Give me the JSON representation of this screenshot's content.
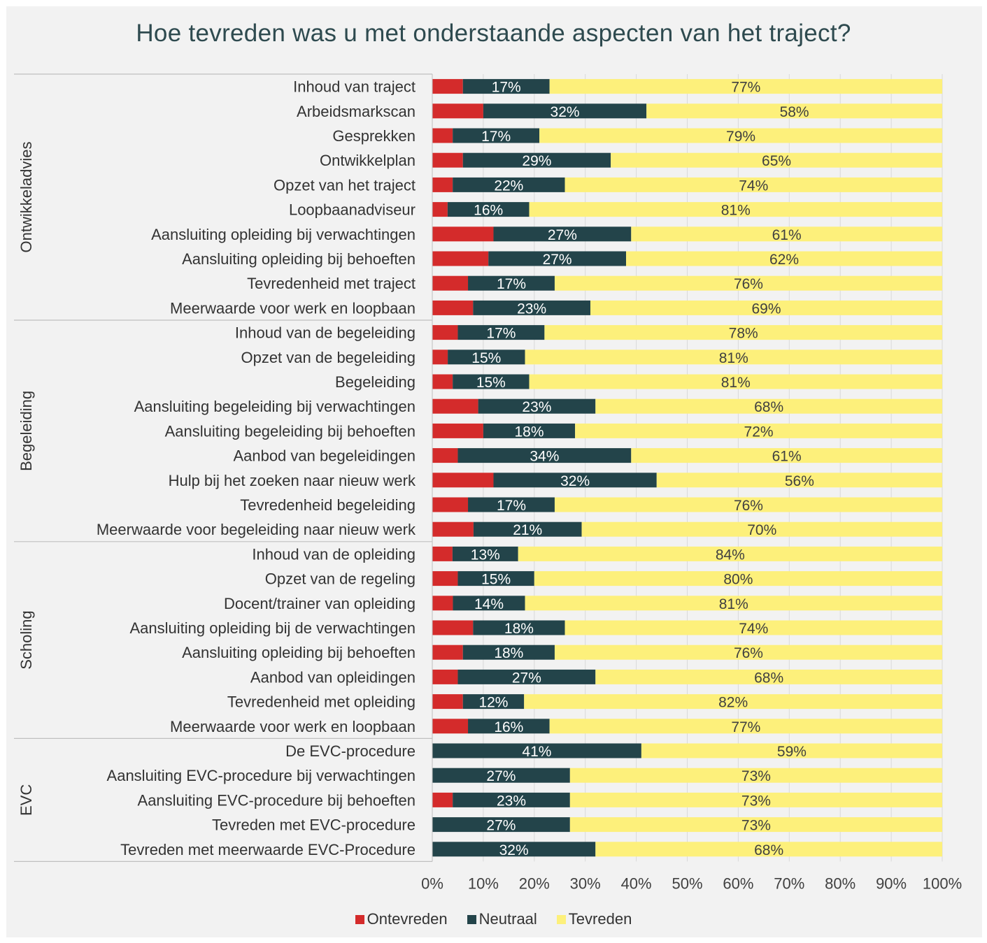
{
  "chart_data": {
    "type": "bar",
    "orientation": "horizontal-stacked-100",
    "title": "Hoe tevreden was u met onderstaande aspecten van het traject?",
    "xlim": [
      0,
      100
    ],
    "x_ticks": [
      "0%",
      "10%",
      "20%",
      "30%",
      "40%",
      "50%",
      "60%",
      "70%",
      "80%",
      "90%",
      "100%"
    ],
    "legend_position": "bottom",
    "colors": {
      "Ontevreden": "#d42b2b",
      "Neutraal": "#23444a",
      "Tevreden": "#fdf07b"
    },
    "series_names": [
      "Ontevreden",
      "Neutraal",
      "Tevreden"
    ],
    "groups": [
      {
        "name": "Ontwikkeladvies",
        "rows": [
          {
            "label": "Inhoud van traject",
            "values": [
              6,
              17,
              77
            ],
            "labels": [
              "",
              "17%",
              "77%"
            ]
          },
          {
            "label": "Arbeidsmarkscan",
            "values": [
              10,
              32,
              58
            ],
            "labels": [
              "",
              "32%",
              "58%"
            ]
          },
          {
            "label": "Gesprekken",
            "values": [
              4,
              17,
              79
            ],
            "labels": [
              "",
              "17%",
              "79%"
            ]
          },
          {
            "label": "Ontwikkelplan",
            "values": [
              6,
              29,
              65
            ],
            "labels": [
              "",
              "29%",
              "65%"
            ]
          },
          {
            "label": "Opzet van het traject",
            "values": [
              4,
              22,
              74
            ],
            "labels": [
              "",
              "22%",
              "74%"
            ]
          },
          {
            "label": "Loopbaanadviseur",
            "values": [
              3,
              16,
              81
            ],
            "labels": [
              "",
              "16%",
              "81%"
            ]
          },
          {
            "label": "Aansluiting opleiding bij verwachtingen",
            "values": [
              12,
              27,
              61
            ],
            "labels": [
              "",
              "27%",
              "61%"
            ]
          },
          {
            "label": "Aansluiting opleiding bij behoeften ",
            "values": [
              11,
              27,
              62
            ],
            "labels": [
              "",
              "27%",
              "62%"
            ]
          },
          {
            "label": "Tevredenheid met traject",
            "values": [
              7,
              17,
              76
            ],
            "labels": [
              "",
              "17%",
              "76%"
            ]
          },
          {
            "label": "Meerwaarde voor werk en loopbaan",
            "values": [
              8,
              23,
              69
            ],
            "labels": [
              "",
              "23%",
              "69%"
            ]
          }
        ]
      },
      {
        "name": "Begeleiding",
        "rows": [
          {
            "label": "Inhoud van de begeleiding",
            "values": [
              5,
              17,
              78
            ],
            "labels": [
              "",
              "17%",
              "78%"
            ]
          },
          {
            "label": "Opzet van de begeleiding",
            "values": [
              3,
              15,
              81
            ],
            "labels": [
              "",
              "15%",
              "81%"
            ]
          },
          {
            "label": "Begeleiding",
            "values": [
              4,
              15,
              81
            ],
            "labels": [
              "",
              "15%",
              "81%"
            ]
          },
          {
            "label": "Aansluiting begeleiding bij verwachtingen",
            "values": [
              9,
              23,
              68
            ],
            "labels": [
              "",
              "23%",
              "68%"
            ]
          },
          {
            "label": "Aansluiting begeleiding bij behoeften",
            "values": [
              10,
              18,
              72
            ],
            "labels": [
              "",
              "18%",
              "72%"
            ]
          },
          {
            "label": "Aanbod van begeleidingen",
            "values": [
              5,
              34,
              61
            ],
            "labels": [
              "",
              "34%",
              "61%"
            ]
          },
          {
            "label": "Hulp bij het zoeken naar nieuw werk",
            "values": [
              12,
              32,
              56
            ],
            "labels": [
              "",
              "32%",
              "56%"
            ]
          },
          {
            "label": "Tevredenheid begeleiding",
            "values": [
              7,
              17,
              76
            ],
            "labels": [
              "",
              "17%",
              "76%"
            ]
          },
          {
            "label": "Meerwaarde voor begeleiding naar nieuw werk",
            "values": [
              8,
              21,
              70
            ],
            "labels": [
              "",
              "21%",
              "70%"
            ]
          }
        ]
      },
      {
        "name": "Scholing",
        "rows": [
          {
            "label": "Inhoud van de opleiding",
            "values": [
              4,
              13,
              84
            ],
            "labels": [
              "",
              "13%",
              "84%"
            ]
          },
          {
            "label": "Opzet van de regeling",
            "values": [
              5,
              15,
              80
            ],
            "labels": [
              "",
              "15%",
              "80%"
            ]
          },
          {
            "label": "Docent/trainer van opleiding",
            "values": [
              4,
              14,
              81
            ],
            "labels": [
              "",
              "14%",
              "81%"
            ]
          },
          {
            "label": "Aansluiting opleiding bij de verwachtingen",
            "values": [
              8,
              18,
              74
            ],
            "labels": [
              "",
              "18%",
              "74%"
            ]
          },
          {
            "label": "Aansluiting opleiding bij behoeften",
            "values": [
              6,
              18,
              76
            ],
            "labels": [
              "",
              "18%",
              "76%"
            ]
          },
          {
            "label": "Aanbod van opleidingen",
            "values": [
              5,
              27,
              68
            ],
            "labels": [
              "",
              "27%",
              "68%"
            ]
          },
          {
            "label": "Tevredenheid met opleiding ",
            "values": [
              6,
              12,
              82
            ],
            "labels": [
              "",
              "12%",
              "82%"
            ]
          },
          {
            "label": "Meerwaarde voor werk en loopbaan",
            "values": [
              7,
              16,
              77
            ],
            "labels": [
              "",
              "16%",
              "77%"
            ]
          }
        ]
      },
      {
        "name": "EVC",
        "rows": [
          {
            "label": "De EVC-procedure",
            "values": [
              0,
              41,
              59
            ],
            "labels": [
              "",
              "41%",
              "59%"
            ]
          },
          {
            "label": "Aansluiting EVC-procedure bij verwachtingen",
            "values": [
              0,
              27,
              73
            ],
            "labels": [
              "",
              "27%",
              "73%"
            ]
          },
          {
            "label": "Aansluiting EVC-procedure bij behoeften",
            "values": [
              4,
              23,
              73
            ],
            "labels": [
              "",
              "23%",
              "73%"
            ]
          },
          {
            "label": "Tevreden met EVC-procedure",
            "values": [
              0,
              27,
              73
            ],
            "labels": [
              "",
              "27%",
              "73%"
            ]
          },
          {
            "label": "Tevreden met meerwaarde EVC-Procedure",
            "values": [
              0,
              32,
              68
            ],
            "labels": [
              "",
              "32%",
              "68%"
            ]
          }
        ]
      }
    ]
  }
}
